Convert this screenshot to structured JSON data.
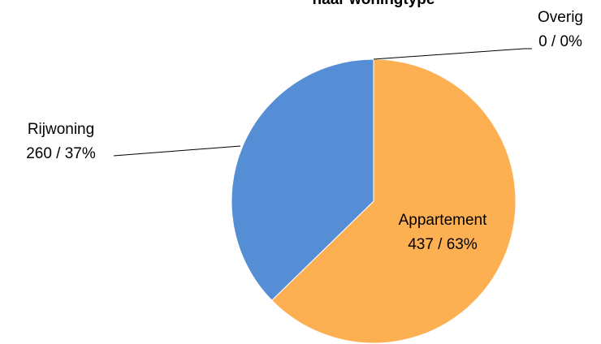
{
  "chart_data": {
    "type": "pie",
    "title": "naar woningtype",
    "categories": [
      "Appartement",
      "Rijwoning",
      "Overig"
    ],
    "values": [
      437,
      260,
      0
    ],
    "value_labels": [
      "437 / 63%",
      "260 / 37%",
      "0 / 0%"
    ],
    "colors": [
      "#FDB052",
      "#558ED5",
      "#A5A5A5"
    ]
  }
}
